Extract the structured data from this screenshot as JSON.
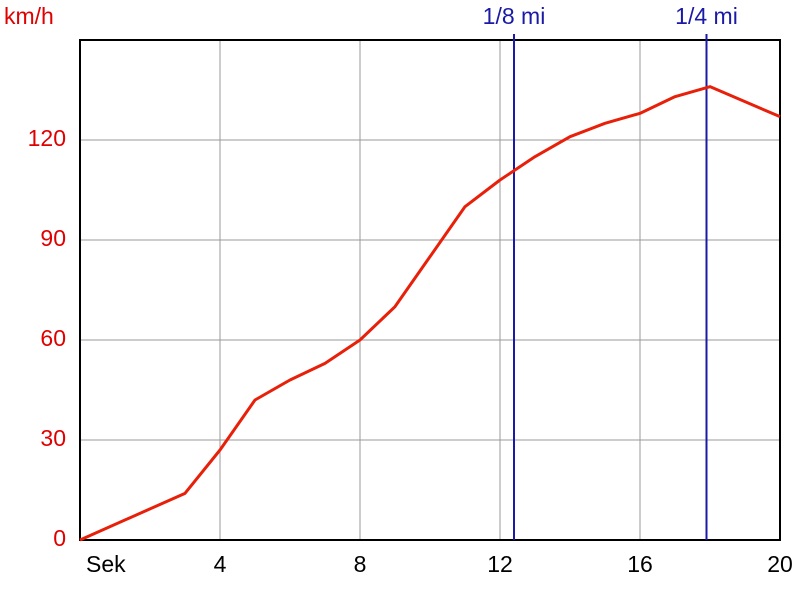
{
  "chart_data": {
    "type": "line",
    "y_label": "km/h",
    "x_label": "Sek",
    "x": [
      0,
      3,
      4,
      5,
      6,
      7,
      8,
      9,
      10,
      11,
      12,
      13,
      14,
      15,
      16,
      17,
      18,
      20
    ],
    "series": [
      {
        "color": "#e8200a",
        "values": [
          0,
          14,
          27,
          42,
          48,
          53,
          60,
          70,
          85,
          100,
          108,
          115,
          121,
          125,
          128,
          133,
          136,
          127
        ]
      }
    ],
    "xlim": [
      0,
      20
    ],
    "xticks": [
      4,
      8,
      12,
      16,
      20
    ],
    "ylim": [
      0,
      150
    ],
    "yticks": [
      0,
      30,
      60,
      90,
      120
    ],
    "grid": true,
    "markers": [
      {
        "x": 12.4,
        "label": "1/8 mi"
      },
      {
        "x": 17.9,
        "label": "1/4 mi"
      }
    ],
    "marker_color": "#1a1aa6",
    "y_tick_color": "#e00000"
  }
}
